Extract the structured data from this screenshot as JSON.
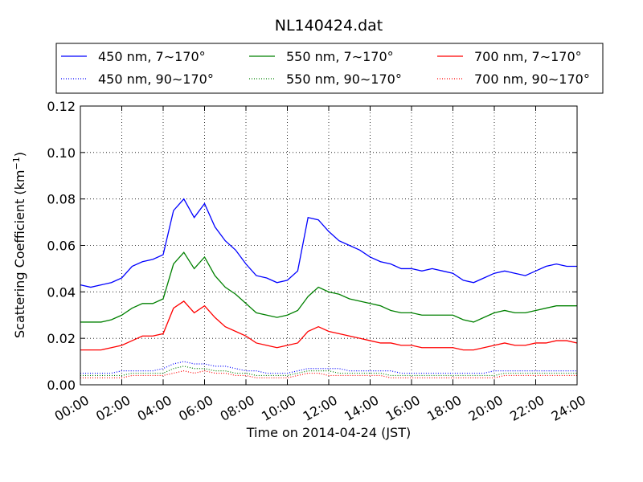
{
  "chart_data": {
    "type": "line",
    "title": "NL140424.dat",
    "xlabel": "Time on 2014-04-24 (JST)",
    "ylabel_main": "Scattering Coefficient (km",
    "ylabel_sup": "−1",
    "ylabel_tail": ")",
    "xlim": [
      0,
      24
    ],
    "ylim": [
      0,
      0.12
    ],
    "x_ticks": [
      0,
      2,
      4,
      6,
      8,
      10,
      12,
      14,
      16,
      18,
      20,
      22,
      24
    ],
    "x_tick_labels": [
      "00:00",
      "02:00",
      "04:00",
      "06:00",
      "08:00",
      "10:00",
      "12:00",
      "14:00",
      "16:00",
      "18:00",
      "20:00",
      "22:00",
      "24:00"
    ],
    "y_ticks": [
      0,
      0.02,
      0.04,
      0.06,
      0.08,
      0.1,
      0.12
    ],
    "y_tick_labels": [
      "0.00",
      "0.02",
      "0.04",
      "0.06",
      "0.08",
      "0.10",
      "0.12"
    ],
    "grid": true,
    "legend_position": "top",
    "x": [
      0,
      0.5,
      1,
      1.5,
      2,
      2.5,
      3,
      3.5,
      4,
      4.5,
      5,
      5.5,
      6,
      6.5,
      7,
      7.5,
      8,
      8.5,
      9,
      9.5,
      10,
      10.5,
      11,
      11.5,
      12,
      12.5,
      13,
      13.5,
      14,
      14.5,
      15,
      15.5,
      16,
      16.5,
      17,
      17.5,
      18,
      18.5,
      19,
      19.5,
      20,
      20.5,
      21,
      21.5,
      22,
      22.5,
      23,
      23.5,
      24
    ],
    "series": [
      {
        "name": "450 nm, 7∼170°",
        "color": "#0000ff",
        "style": "solid",
        "values": [
          0.043,
          0.042,
          0.043,
          0.044,
          0.046,
          0.051,
          0.053,
          0.054,
          0.056,
          0.075,
          0.08,
          0.072,
          0.078,
          0.068,
          0.062,
          0.058,
          0.052,
          0.047,
          0.046,
          0.044,
          0.045,
          0.049,
          0.072,
          0.071,
          0.066,
          0.062,
          0.06,
          0.058,
          0.055,
          0.053,
          0.052,
          0.05,
          0.05,
          0.049,
          0.05,
          0.049,
          0.048,
          0.045,
          0.044,
          0.046,
          0.048,
          0.049,
          0.048,
          0.047,
          0.049,
          0.051,
          0.052,
          0.051,
          0.051
        ]
      },
      {
        "name": "550 nm, 7∼170°",
        "color": "#008000",
        "style": "solid",
        "values": [
          0.027,
          0.027,
          0.027,
          0.028,
          0.03,
          0.033,
          0.035,
          0.035,
          0.037,
          0.052,
          0.057,
          0.05,
          0.055,
          0.047,
          0.042,
          0.039,
          0.035,
          0.031,
          0.03,
          0.029,
          0.03,
          0.032,
          0.038,
          0.042,
          0.04,
          0.039,
          0.037,
          0.036,
          0.035,
          0.034,
          0.032,
          0.031,
          0.031,
          0.03,
          0.03,
          0.03,
          0.03,
          0.028,
          0.027,
          0.029,
          0.031,
          0.032,
          0.031,
          0.031,
          0.032,
          0.033,
          0.034,
          0.034,
          0.034
        ]
      },
      {
        "name": "700 nm, 7∼170°",
        "color": "#ff0000",
        "style": "solid",
        "values": [
          0.015,
          0.015,
          0.015,
          0.016,
          0.017,
          0.019,
          0.021,
          0.021,
          0.022,
          0.033,
          0.036,
          0.031,
          0.034,
          0.029,
          0.025,
          0.023,
          0.021,
          0.018,
          0.017,
          0.016,
          0.017,
          0.018,
          0.023,
          0.025,
          0.023,
          0.022,
          0.021,
          0.02,
          0.019,
          0.018,
          0.018,
          0.017,
          0.017,
          0.016,
          0.016,
          0.016,
          0.016,
          0.015,
          0.015,
          0.016,
          0.017,
          0.018,
          0.017,
          0.017,
          0.018,
          0.018,
          0.019,
          0.019,
          0.018
        ]
      },
      {
        "name": "450 nm, 90∼170°",
        "color": "#0000ff",
        "style": "dotted",
        "values": [
          0.005,
          0.005,
          0.005,
          0.005,
          0.006,
          0.006,
          0.006,
          0.006,
          0.007,
          0.009,
          0.01,
          0.009,
          0.009,
          0.008,
          0.008,
          0.007,
          0.006,
          0.006,
          0.005,
          0.005,
          0.005,
          0.006,
          0.007,
          0.007,
          0.007,
          0.007,
          0.006,
          0.006,
          0.006,
          0.006,
          0.006,
          0.005,
          0.005,
          0.005,
          0.005,
          0.005,
          0.005,
          0.005,
          0.005,
          0.005,
          0.006,
          0.006,
          0.006,
          0.006,
          0.006,
          0.006,
          0.006,
          0.006,
          0.006
        ]
      },
      {
        "name": "550 nm, 90∼170°",
        "color": "#008000",
        "style": "dotted",
        "values": [
          0.004,
          0.004,
          0.004,
          0.004,
          0.004,
          0.005,
          0.005,
          0.005,
          0.005,
          0.007,
          0.008,
          0.007,
          0.007,
          0.006,
          0.006,
          0.005,
          0.005,
          0.004,
          0.004,
          0.004,
          0.004,
          0.005,
          0.006,
          0.006,
          0.006,
          0.005,
          0.005,
          0.005,
          0.005,
          0.005,
          0.004,
          0.004,
          0.004,
          0.004,
          0.004,
          0.004,
          0.004,
          0.004,
          0.004,
          0.004,
          0.004,
          0.005,
          0.005,
          0.005,
          0.005,
          0.005,
          0.005,
          0.005,
          0.005
        ]
      },
      {
        "name": "700 nm, 90∼170°",
        "color": "#ff0000",
        "style": "dotted",
        "values": [
          0.003,
          0.003,
          0.003,
          0.003,
          0.003,
          0.004,
          0.004,
          0.004,
          0.004,
          0.005,
          0.006,
          0.005,
          0.006,
          0.005,
          0.005,
          0.004,
          0.004,
          0.003,
          0.003,
          0.003,
          0.003,
          0.004,
          0.005,
          0.005,
          0.004,
          0.004,
          0.004,
          0.004,
          0.004,
          0.004,
          0.003,
          0.003,
          0.003,
          0.003,
          0.003,
          0.003,
          0.003,
          0.003,
          0.003,
          0.003,
          0.003,
          0.004,
          0.004,
          0.004,
          0.004,
          0.004,
          0.004,
          0.004,
          0.004
        ]
      }
    ]
  }
}
